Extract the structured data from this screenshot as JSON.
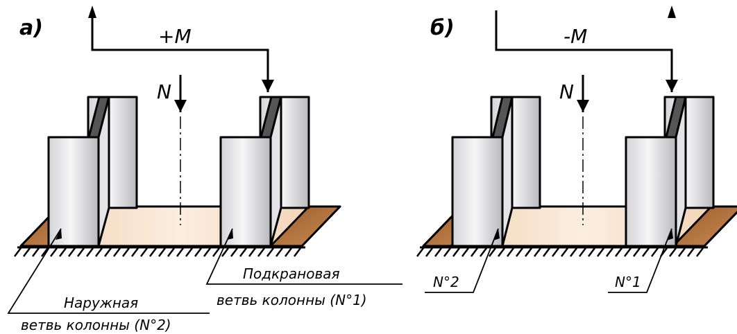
{
  "panels": [
    {
      "label": "а)",
      "moment": "+M",
      "force": "N",
      "callouts": [
        {
          "lines": [
            "Наружная",
            "ветвь колонны (N°2)"
          ]
        },
        {
          "lines": [
            "Подкрановая",
            "ветвь колонны (N°1)"
          ]
        }
      ]
    },
    {
      "label": "б)",
      "moment": "-M",
      "force": "N",
      "callouts": [
        {
          "lines": [
            "N°2"
          ]
        },
        {
          "lines": [
            "N°1"
          ]
        }
      ]
    }
  ]
}
